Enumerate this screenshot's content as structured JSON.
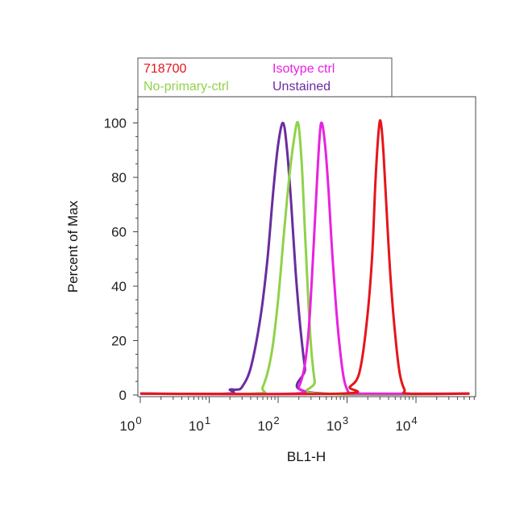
{
  "chart_data": {
    "type": "line",
    "xlabel": "BL1-H",
    "ylabel": "Percent of Max",
    "x_scale": "log",
    "xlim": [
      1,
      60000
    ],
    "ylim": [
      0,
      110
    ],
    "y_ticks": [
      "0",
      "20",
      "40",
      "60",
      "80",
      "100"
    ],
    "x_ticks": [
      {
        "base": "10",
        "exp": "0",
        "value": 1
      },
      {
        "base": "10",
        "exp": "1",
        "value": 10
      },
      {
        "base": "10",
        "exp": "2",
        "value": 100
      },
      {
        "base": "10",
        "exp": "3",
        "value": 1000
      },
      {
        "base": "10",
        "exp": "4",
        "value": 10000
      }
    ],
    "legend": {
      "placement": "top",
      "entries": [
        {
          "label": "718700",
          "color": "#e4161b"
        },
        {
          "label": "Isotype ctrl",
          "color": "#e822e0"
        },
        {
          "label": "No-primary-ctrl",
          "color": "#8fd24a"
        },
        {
          "label": "Unstained",
          "color": "#6a2ca0"
        }
      ]
    },
    "series": [
      {
        "name": "Unstained",
        "color": "#6a2ca0",
        "points": [
          [
            1,
            0.5
          ],
          [
            18,
            0.5
          ],
          [
            20,
            2
          ],
          [
            25,
            2
          ],
          [
            30,
            3
          ],
          [
            40,
            10
          ],
          [
            55,
            28
          ],
          [
            70,
            50
          ],
          [
            85,
            75
          ],
          [
            100,
            92
          ],
          [
            118,
            100
          ],
          [
            135,
            90
          ],
          [
            155,
            70
          ],
          [
            180,
            45
          ],
          [
            210,
            25
          ],
          [
            245,
            10
          ],
          [
            290,
            1
          ],
          [
            60000,
            0.5
          ]
        ]
      },
      {
        "name": "No-primary-ctrl",
        "color": "#8fd24a",
        "points": [
          [
            1,
            0.5
          ],
          [
            45,
            0.5
          ],
          [
            60,
            3
          ],
          [
            80,
            15
          ],
          [
            100,
            35
          ],
          [
            120,
            58
          ],
          [
            145,
            80
          ],
          [
            170,
            94
          ],
          [
            195,
            100
          ],
          [
            220,
            85
          ],
          [
            245,
            60
          ],
          [
            270,
            38
          ],
          [
            300,
            18
          ],
          [
            340,
            5
          ],
          [
            380,
            0.5
          ],
          [
            60000,
            0.5
          ]
        ]
      },
      {
        "name": "Isotype ctrl",
        "color": "#e822e0",
        "points": [
          [
            1,
            0.5
          ],
          [
            160,
            0.5
          ],
          [
            200,
            3
          ],
          [
            240,
            10
          ],
          [
            280,
            25
          ],
          [
            320,
            50
          ],
          [
            360,
            75
          ],
          [
            400,
            95
          ],
          [
            430,
            100
          ],
          [
            480,
            92
          ],
          [
            540,
            75
          ],
          [
            600,
            55
          ],
          [
            680,
            35
          ],
          [
            780,
            18
          ],
          [
            900,
            6
          ],
          [
            1050,
            1
          ],
          [
            1200,
            0.5
          ],
          [
            60000,
            0.5
          ]
        ]
      },
      {
        "name": "718700",
        "color": "#e4161b",
        "points": [
          [
            1,
            0.5
          ],
          [
            800,
            0.5
          ],
          [
            1100,
            3
          ],
          [
            1500,
            8
          ],
          [
            1900,
            25
          ],
          [
            2300,
            50
          ],
          [
            2600,
            80
          ],
          [
            2900,
            98
          ],
          [
            3100,
            100
          ],
          [
            3400,
            88
          ],
          [
            3800,
            65
          ],
          [
            4300,
            42
          ],
          [
            5000,
            22
          ],
          [
            5800,
            8
          ],
          [
            6800,
            2
          ],
          [
            8000,
            0.5
          ],
          [
            60000,
            0.5
          ]
        ]
      }
    ]
  }
}
